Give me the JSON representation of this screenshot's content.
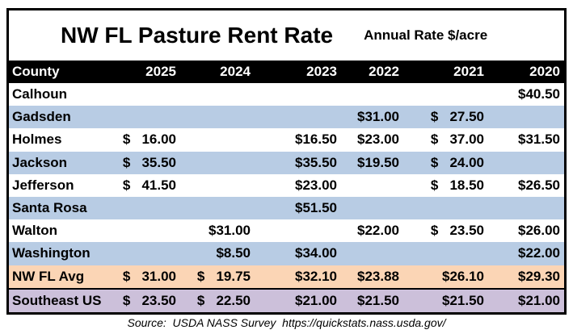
{
  "title": "NW FL Pasture Rent Rate",
  "subtitle": "Annual Rate $/acre",
  "source": "Source:  USDA NASS Survey  https://quickstats.nass.usda.gov/",
  "colors": {
    "header_bg": "#000000",
    "header_text": "#ffffff",
    "row_white": "#ffffff",
    "row_blue": "#B8CCE4",
    "row_peach": "#FBD5B5",
    "row_lavender": "#CCC0DA",
    "border": "#000000"
  },
  "chart_data": {
    "type": "table",
    "title": "NW FL Pasture Rent Rate",
    "subtitle": "Annual Rate $/acre",
    "columns": [
      "County",
      "2025",
      "2024",
      "2023",
      "2022",
      "2021",
      "2020"
    ],
    "rows": [
      {
        "county": "Calhoun",
        "values": {
          "2025": null,
          "2024": null,
          "2023": null,
          "2022": null,
          "2021": null,
          "2020": 40.5
        }
      },
      {
        "county": "Gadsden",
        "values": {
          "2025": null,
          "2024": null,
          "2023": null,
          "2022": 31.0,
          "2021": 27.5,
          "2020": null
        }
      },
      {
        "county": "Holmes",
        "values": {
          "2025": 16.0,
          "2024": null,
          "2023": 16.5,
          "2022": 23.0,
          "2021": 37.0,
          "2020": 31.5
        }
      },
      {
        "county": "Jackson",
        "values": {
          "2025": 35.5,
          "2024": null,
          "2023": 35.5,
          "2022": 19.5,
          "2021": 24.0,
          "2020": null
        }
      },
      {
        "county": "Jefferson",
        "values": {
          "2025": 41.5,
          "2024": null,
          "2023": 23.0,
          "2022": null,
          "2021": 18.5,
          "2020": 26.5
        }
      },
      {
        "county": "Santa Rosa",
        "values": {
          "2025": null,
          "2024": null,
          "2023": 51.5,
          "2022": null,
          "2021": null,
          "2020": null
        }
      },
      {
        "county": "Walton",
        "values": {
          "2025": null,
          "2024": 31.0,
          "2023": null,
          "2022": 22.0,
          "2021": 23.5,
          "2020": 26.0
        }
      },
      {
        "county": "Washington",
        "values": {
          "2025": null,
          "2024": 8.5,
          "2023": 34.0,
          "2022": null,
          "2021": null,
          "2020": 22.0
        }
      },
      {
        "county": "NW FL Avg",
        "values": {
          "2025": 31.0,
          "2024": 19.75,
          "2023": 32.1,
          "2022": 23.88,
          "2021": 26.1,
          "2020": 29.3
        }
      },
      {
        "county": "Southeast US",
        "values": {
          "2025": 23.5,
          "2024": 22.5,
          "2023": 21.0,
          "2022": 21.5,
          "2021": 21.5,
          "2020": 21.0
        }
      }
    ]
  },
  "table": {
    "columns": [
      "County",
      "2025",
      "2024",
      "2023",
      "2022",
      "2021",
      "2020"
    ],
    "rows": [
      {
        "bg": "row_white",
        "cells": [
          "Calhoun",
          "",
          "",
          "",
          "",
          "",
          "$40.50"
        ]
      },
      {
        "bg": "row_blue",
        "cells": [
          "Gadsden",
          "",
          "",
          "",
          "$31.00",
          "$   27.50",
          ""
        ]
      },
      {
        "bg": "row_white",
        "cells": [
          "Holmes",
          "$   16.00",
          "",
          "$16.50",
          "$23.00",
          "$   37.00",
          "$31.50"
        ]
      },
      {
        "bg": "row_blue",
        "cells": [
          "Jackson",
          "$   35.50",
          "",
          "$35.50",
          "$19.50",
          "$   24.00",
          ""
        ]
      },
      {
        "bg": "row_white",
        "cells": [
          "Jefferson",
          "$   41.50",
          "",
          "$23.00",
          "",
          "$   18.50",
          "$26.50"
        ]
      },
      {
        "bg": "row_blue",
        "cells": [
          "Santa Rosa",
          "",
          "",
          "$51.50",
          "",
          "",
          ""
        ]
      },
      {
        "bg": "row_white",
        "cells": [
          "Walton",
          "",
          "$31.00",
          "",
          "$22.00",
          "$   23.50",
          "$26.00"
        ]
      },
      {
        "bg": "row_blue",
        "cells": [
          "Washington",
          "",
          "$8.50",
          "$34.00",
          "",
          "",
          "$22.00"
        ]
      },
      {
        "bg": "row_peach",
        "avg": true,
        "cells": [
          "NW FL Avg",
          "$   31.00",
          "$   19.75",
          "$32.10",
          "$23.88",
          "$26.10",
          "$29.30"
        ]
      },
      {
        "bg": "row_lavender",
        "cells": [
          "Southeast US",
          "$   23.50",
          "$   22.50",
          "$21.00",
          "$21.50",
          "$21.50",
          "$21.00"
        ]
      }
    ]
  }
}
